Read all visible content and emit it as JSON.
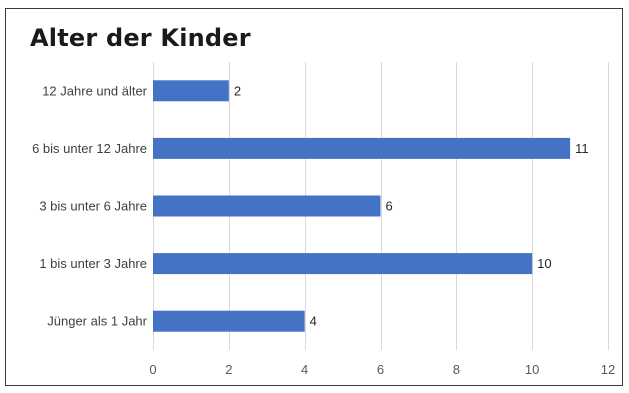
{
  "chart_data": {
    "type": "bar",
    "orientation": "horizontal",
    "title": "Alter der Kinder",
    "categories": [
      "12 Jahre und älter",
      "6 bis unter 12 Jahre",
      "3 bis unter 6 Jahre",
      "1 bis unter 3 Jahre",
      "Jünger als 1 Jahr"
    ],
    "values": [
      2,
      11,
      6,
      10,
      4
    ],
    "xlim": [
      0,
      12
    ],
    "xticks": [
      0,
      2,
      4,
      6,
      8,
      10,
      12
    ],
    "xlabel": "",
    "ylabel": "",
    "grid": true,
    "data_labels": true,
    "bar_color": "#4472c4"
  }
}
